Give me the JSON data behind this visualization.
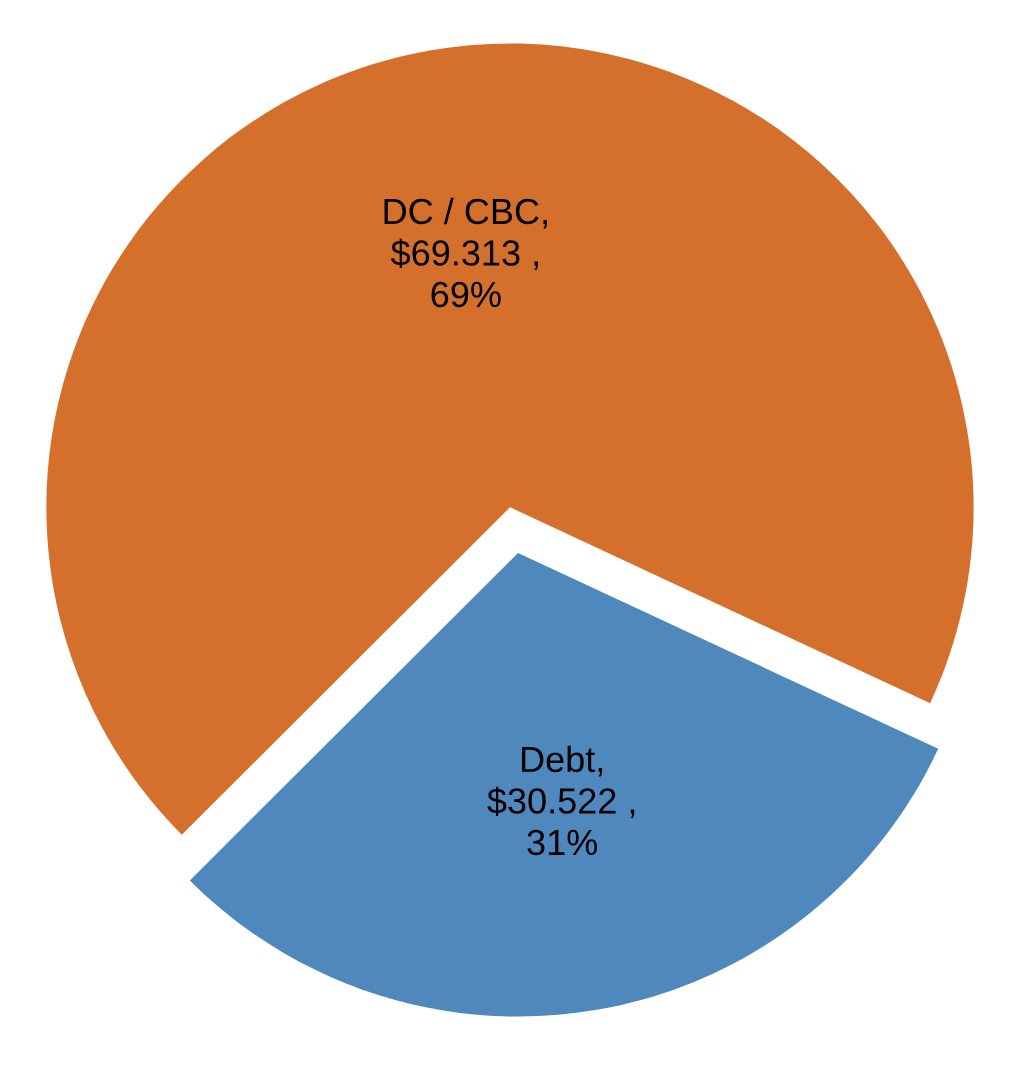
{
  "chart_data": {
    "type": "pie",
    "categories": [
      "DC / CBC",
      "Debt"
    ],
    "values": [
      69.313,
      30.522
    ],
    "colors": [
      "#d4702b",
      "#4f88bd"
    ],
    "value_labels": [
      ",\n$69.313 ,\n69%",
      ",\n$30.522 ,\n31%"
    ]
  }
}
